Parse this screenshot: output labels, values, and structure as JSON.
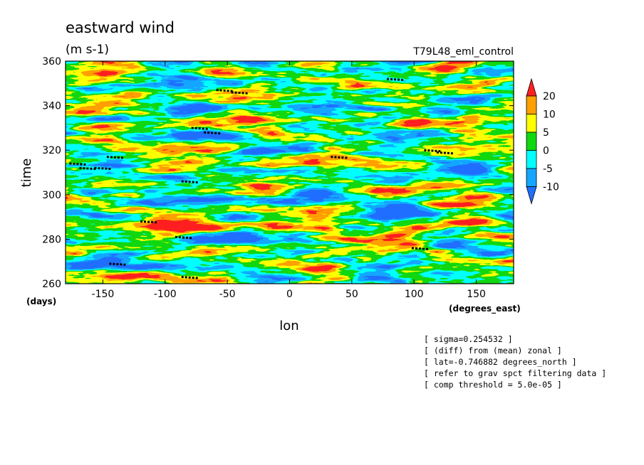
{
  "chart_data": {
    "type": "heatmap",
    "title": "eastward wind",
    "units": "(m s-1)",
    "experiment": "T79L48_eml_control",
    "xlabel": "lon",
    "ylabel": "time",
    "x_units": "(degrees_east)",
    "y_units": "(days)",
    "xlim": [
      -180,
      180
    ],
    "ylim": [
      260,
      360
    ],
    "x_ticks": [
      -150,
      -100,
      -50,
      0,
      50,
      100,
      150
    ],
    "y_ticks": [
      260,
      280,
      300,
      320,
      340,
      360
    ],
    "x_tick_labels": [
      "-150",
      "-100",
      "-50",
      "0",
      "50",
      "100",
      "150"
    ],
    "y_tick_labels": [
      "260",
      "280",
      "300",
      "320",
      "340",
      "360"
    ],
    "colorbar": {
      "levels": [
        -10,
        -5,
        0,
        5,
        10,
        20
      ],
      "level_labels": [
        "-10",
        "-5",
        "0",
        "5",
        "10",
        "20"
      ],
      "colors": [
        "#1f6fff",
        "#14a6ff",
        "#00ffff",
        "#10d810",
        "#ffff00",
        "#ffa000",
        "#ff2020"
      ]
    },
    "markers": [
      {
        "lon": -170,
        "time": 314
      },
      {
        "lon": -162,
        "time": 312
      },
      {
        "lon": -150,
        "time": 312
      },
      {
        "lon": -140,
        "time": 317
      },
      {
        "lon": -138,
        "time": 269
      },
      {
        "lon": -113,
        "time": 288
      },
      {
        "lon": -85,
        "time": 281
      },
      {
        "lon": -80,
        "time": 306
      },
      {
        "lon": -80,
        "time": 263
      },
      {
        "lon": -72,
        "time": 330
      },
      {
        "lon": -62,
        "time": 328
      },
      {
        "lon": -52,
        "time": 347
      },
      {
        "lon": -40,
        "time": 346
      },
      {
        "lon": 40,
        "time": 317
      },
      {
        "lon": 85,
        "time": 352
      },
      {
        "lon": 105,
        "time": 276
      },
      {
        "lon": 115,
        "time": 320
      },
      {
        "lon": 125,
        "time": 319
      }
    ],
    "notes": [
      "[ sigma=0.254532 ]",
      "[ (diff) from (mean) zonal ]",
      "[ lat=-0.746882 degrees_north ]",
      "[ refer to grav spct filtering data ]",
      "[ comp threshold = 5.0e-05 ]"
    ]
  }
}
